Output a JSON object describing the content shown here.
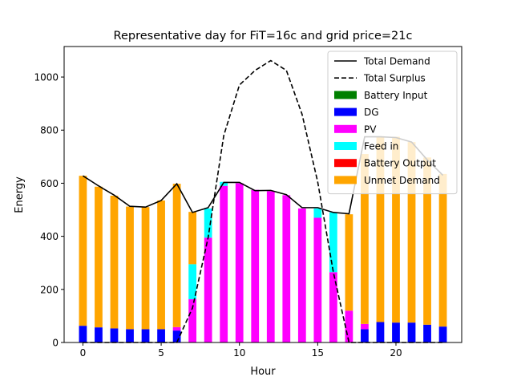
{
  "chart_data": {
    "type": "bar",
    "title": "Representative day for FiT=16c and grid price=21c",
    "xlabel": "Hour",
    "ylabel": "Energy",
    "xlim": [
      -1.2,
      24.2
    ],
    "ylim": [
      0,
      1115
    ],
    "xticks": [
      0,
      5,
      10,
      15,
      20
    ],
    "yticks": [
      0,
      200,
      400,
      600,
      800,
      1000
    ],
    "grid": false,
    "legend_position": "top-right",
    "hours": [
      0,
      1,
      2,
      3,
      4,
      5,
      6,
      7,
      8,
      9,
      10,
      11,
      12,
      13,
      14,
      15,
      16,
      17,
      18,
      19,
      20,
      21,
      22,
      23
    ],
    "stack_order": [
      "Battery Input",
      "DG",
      "PV",
      "Feed in",
      "Battery Output",
      "Unmet Demand"
    ],
    "series": [
      {
        "name": "Battery Input",
        "kind": "bar",
        "color": "#008000",
        "values": [
          0,
          0,
          0,
          0,
          0,
          0,
          0,
          0,
          0,
          0,
          0,
          0,
          0,
          0,
          0,
          0,
          0,
          0,
          0,
          0,
          0,
          0,
          0,
          0
        ]
      },
      {
        "name": "DG",
        "kind": "bar",
        "color": "#0000ff",
        "values": [
          63,
          57,
          53,
          50,
          50,
          50,
          45,
          0,
          0,
          0,
          0,
          0,
          0,
          0,
          0,
          0,
          0,
          0,
          50,
          77,
          75,
          75,
          67,
          60
        ]
      },
      {
        "name": "PV",
        "kind": "bar",
        "color": "#ff00ff",
        "values": [
          0,
          0,
          0,
          0,
          0,
          0,
          13,
          163,
          395,
          590,
          600,
          575,
          570,
          555,
          505,
          470,
          265,
          120,
          20,
          0,
          0,
          0,
          0,
          0
        ]
      },
      {
        "name": "Feed in",
        "kind": "bar",
        "color": "#00ffff",
        "values": [
          0,
          0,
          0,
          0,
          0,
          0,
          0,
          132,
          110,
          15,
          0,
          0,
          0,
          0,
          0,
          35,
          225,
          0,
          0,
          0,
          0,
          0,
          0,
          0
        ]
      },
      {
        "name": "Battery Output",
        "kind": "bar",
        "color": "#ff0000",
        "values": [
          0,
          0,
          0,
          0,
          0,
          0,
          0,
          0,
          0,
          0,
          0,
          0,
          0,
          0,
          0,
          0,
          0,
          0,
          0,
          0,
          0,
          0,
          0,
          0
        ]
      },
      {
        "name": "Unmet Demand",
        "kind": "bar",
        "color": "#ffa500",
        "values": [
          565,
          530,
          500,
          462,
          460,
          485,
          540,
          197,
          0,
          0,
          0,
          0,
          0,
          0,
          0,
          0,
          0,
          363,
          640,
          700,
          700,
          680,
          630,
          575
        ]
      },
      {
        "name": "Total Demand",
        "kind": "line",
        "color": "#000000",
        "dash": "solid",
        "values": [
          628,
          590,
          555,
          513,
          510,
          535,
          598,
          490,
          508,
          603,
          603,
          572,
          573,
          557,
          508,
          508,
          490,
          485,
          775,
          775,
          772,
          755,
          688,
          630
        ]
      },
      {
        "name": "Total Surplus",
        "kind": "line",
        "color": "#000000",
        "dash": "dashed",
        "values": [
          0,
          0,
          0,
          0,
          0,
          0,
          0,
          130,
          395,
          780,
          970,
          1025,
          1062,
          1025,
          860,
          605,
          265,
          0,
          0,
          0,
          0,
          0,
          0,
          0
        ]
      }
    ]
  },
  "legend_entries": [
    {
      "label": "Total Demand",
      "swatch": "solid-line",
      "color": "#000000"
    },
    {
      "label": "Total Surplus",
      "swatch": "dashed-line",
      "color": "#000000"
    },
    {
      "label": "Battery Input",
      "swatch": "patch",
      "color": "#008000"
    },
    {
      "label": "DG",
      "swatch": "patch",
      "color": "#0000ff"
    },
    {
      "label": "PV",
      "swatch": "patch",
      "color": "#ff00ff"
    },
    {
      "label": "Feed in",
      "swatch": "patch",
      "color": "#00ffff"
    },
    {
      "label": "Battery Output",
      "swatch": "patch",
      "color": "#ff0000"
    },
    {
      "label": "Unmet Demand",
      "swatch": "patch",
      "color": "#ffa500"
    }
  ]
}
